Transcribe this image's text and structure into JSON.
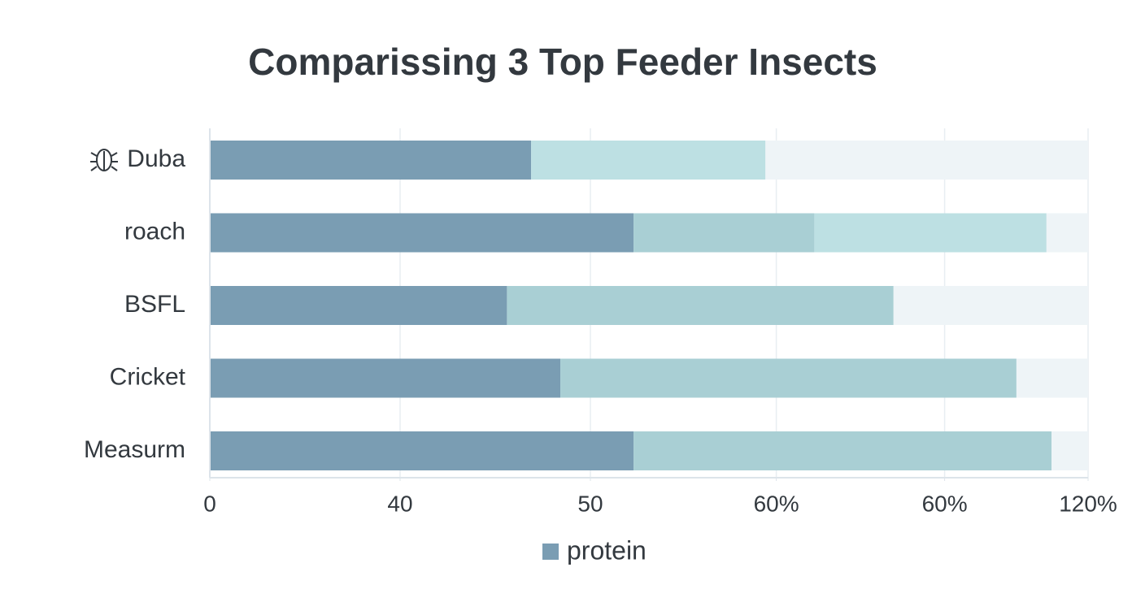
{
  "chart_data": {
    "type": "stacked-bar-horizontal",
    "title": "Comparissing 3 Top Feeder Insects",
    "categories": [
      "Duba",
      "roach",
      "BSFL",
      "Cricket",
      "Measurm"
    ],
    "series": [
      {
        "name": "protein",
        "color": "#7a9db3",
        "values": [
          43.9,
          57.9,
          40.6,
          47.9,
          57.9
        ]
      },
      {
        "color": "#a9cfd4",
        "values": [
          null,
          24.7,
          52.8,
          62.3,
          57.1
        ]
      },
      {
        "color": "#bde0e3",
        "values": [
          32.0,
          31.7,
          null,
          null,
          null
        ]
      }
    ],
    "xlim": [
      0,
      120
    ],
    "xticks": [
      0,
      {
        "value": 26,
        "label": "40"
      },
      {
        "value": 52,
        "label": "50"
      },
      {
        "value": 77.4,
        "label": "60%"
      },
      {
        "value": 100.4,
        "label": "60%"
      },
      {
        "value": 120,
        "label": "120%"
      }
    ],
    "grid": true
  }
}
